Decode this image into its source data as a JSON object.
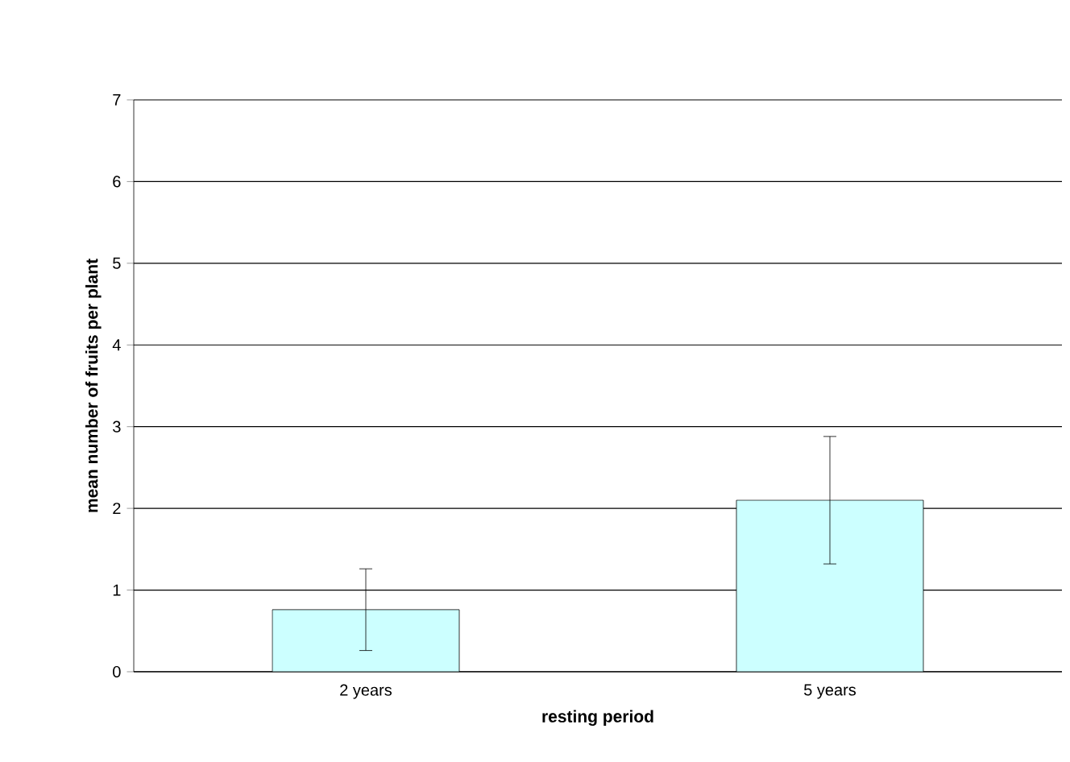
{
  "chart_data": {
    "type": "bar",
    "xlabel": "resting period",
    "ylabel": "mean number of fruits per plant",
    "categories": [
      "2 years",
      "5 years"
    ],
    "values": [
      0.76,
      2.1
    ],
    "errors": [
      0.5,
      0.78
    ],
    "color": "#ccffff",
    "ylim": [
      0,
      7
    ],
    "yticks": [
      0,
      1,
      2,
      3,
      4,
      5,
      6,
      7
    ],
    "grid": "y"
  }
}
